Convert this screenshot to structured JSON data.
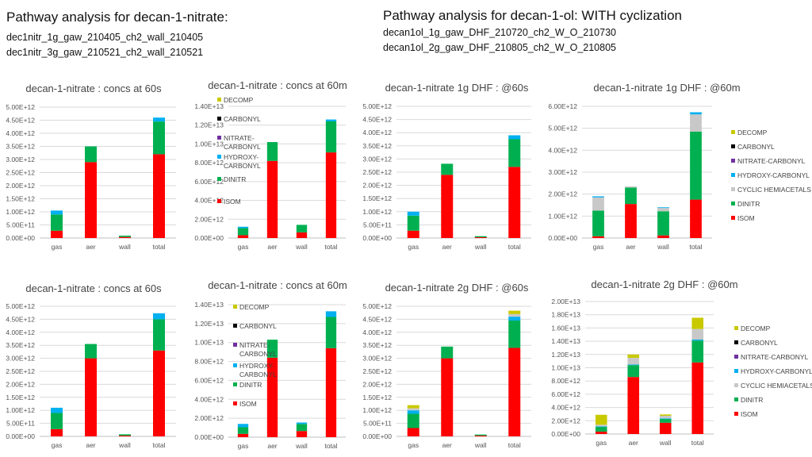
{
  "header": {
    "left_title": "Pathway analysis for decan-1-nitrate:",
    "left_lines": [
      "dec1nitr_1g_gaw_210405_ch2_wall_210405",
      "dec1nitr_3g_gaw_210521_ch2_wall_210521"
    ],
    "right_title": "Pathway analysis for decan-1-ol: WITH cyclization",
    "right_lines": [
      "decan1ol_1g_gaw_DHF_210720_ch2_W_O_210730",
      "decan1ol_2g_gaw_DHF_210805_ch2_W_O_210805"
    ]
  },
  "colors": {
    "ISOM": "#ff0000",
    "DINITR": "#00b050",
    "HYDROXY-CARBONYL": "#00b0f0",
    "NITRATE-CARBONYL": "#7030a0",
    "CARBONYL": "#000000",
    "DECOMP": "#c9c900",
    "CYCLIC HEMIACETALS": "#c8c8c8",
    "grid": "#d9d9d9"
  },
  "chart_data": [
    {
      "type": "bar",
      "stacked": true,
      "title": "decan-1-nitrate : concs at 60s",
      "categories": [
        "gas",
        "aer",
        "wall",
        "total"
      ],
      "yticks": [
        "0.00E+00",
        "5.00E+11",
        "1.00E+12",
        "1.50E+12",
        "2.00E+12",
        "2.50E+12",
        "3.00E+12",
        "3.50E+12",
        "4.00E+12",
        "4.50E+12",
        "5.00E+12"
      ],
      "ylim": [
        0,
        5000000000000.0
      ],
      "legend": null,
      "series": [
        {
          "name": "ISOM",
          "values": [
            280000000000.0,
            2900000000000.0,
            40000000000.0,
            3200000000000.0
          ]
        },
        {
          "name": "DINITR",
          "values": [
            620000000000.0,
            600000000000.0,
            50000000000.0,
            1250000000000.0
          ]
        },
        {
          "name": "HYDROXY-CARBONYL",
          "values": [
            150000000000.0,
            0,
            0,
            150000000000.0
          ]
        }
      ]
    },
    {
      "type": "bar",
      "stacked": true,
      "title": "decan-1-nitrate : concs at 60m",
      "categories": [
        "gas",
        "aer",
        "wall",
        "total"
      ],
      "yticks": [
        "0.00E+00",
        "2.00E+12",
        "4.00E+12",
        "6.00E+12",
        "8.00E+12",
        "1.00E+13",
        "1.20E+13",
        "1.40E+13"
      ],
      "ylim": [
        0,
        14000000000000.0
      ],
      "legend": [
        "DECOMP",
        "CARBONYL",
        "NITRATE-\nCARBONYL",
        "HYDROXY-\nCARBONYL",
        "DINITR",
        "ISOM"
      ],
      "legend_keys": [
        "DECOMP",
        "CARBONYL",
        "NITRATE-CARBONYL",
        "HYDROXY-CARBONYL",
        "DINITR",
        "ISOM"
      ],
      "series": [
        {
          "name": "ISOM",
          "values": [
            300000000000.0,
            8200000000000.0,
            600000000000.0,
            9100000000000.0
          ]
        },
        {
          "name": "DINITR",
          "values": [
            750000000000.0,
            2000000000000.0,
            800000000000.0,
            3300000000000.0
          ]
        },
        {
          "name": "HYDROXY-CARBONYL",
          "values": [
            150000000000.0,
            0,
            0,
            200000000000.0
          ]
        }
      ]
    },
    {
      "type": "bar",
      "stacked": true,
      "title": "decan-1-nitrate 1g DHF : @60s",
      "categories": [
        "gas",
        "aer",
        "wall",
        "total"
      ],
      "yticks": [
        "0.00E+00",
        "5.00E+11",
        "1.00E+12",
        "1.50E+12",
        "2.00E+12",
        "2.50E+12",
        "3.00E+12",
        "3.50E+12",
        "4.00E+12",
        "4.50E+12",
        "5.00E+12"
      ],
      "ylim": [
        0,
        5000000000000.0
      ],
      "legend": null,
      "series": [
        {
          "name": "ISOM",
          "values": [
            280000000000.0,
            2400000000000.0,
            30000000000.0,
            2700000000000.0
          ]
        },
        {
          "name": "DINITR",
          "values": [
            570000000000.0,
            420000000000.0,
            40000000000.0,
            1050000000000.0
          ]
        },
        {
          "name": "HYDROXY-CARBONYL",
          "values": [
            150000000000.0,
            0,
            0,
            150000000000.0
          ]
        }
      ]
    },
    {
      "type": "bar",
      "stacked": true,
      "title": "decan-1-nitrate 1g DHF : @60m",
      "categories": [
        "gas",
        "aer",
        "wall",
        "total"
      ],
      "yticks": [
        "0.00E+00",
        "1.00E+12",
        "2.00E+12",
        "3.00E+12",
        "4.00E+12",
        "5.00E+12",
        "6.00E+12"
      ],
      "ylim": [
        0,
        6000000000000.0
      ],
      "legend": [
        "DECOMP",
        "CARBONYL",
        "NITRATE-CARBONYL",
        "HYDROXY-CARBONYL",
        "CYCLIC HEMIACETALS",
        "DINITR",
        "ISOM"
      ],
      "legend_keys": [
        "DECOMP",
        "CARBONYL",
        "NITRATE-CARBONYL",
        "HYDROXY-CARBONYL",
        "CYCLIC HEMIACETALS",
        "DINITR",
        "ISOM"
      ],
      "series": [
        {
          "name": "ISOM",
          "values": [
            80000000000.0,
            1550000000000.0,
            120000000000.0,
            1750000000000.0
          ]
        },
        {
          "name": "DINITR",
          "values": [
            1170000000000.0,
            750000000000.0,
            1100000000000.0,
            3100000000000.0
          ]
        },
        {
          "name": "CYCLIC HEMIACETALS",
          "values": [
            600000000000.0,
            50000000000.0,
            150000000000.0,
            780000000000.0
          ]
        },
        {
          "name": "HYDROXY-CARBONYL",
          "values": [
            50000000000.0,
            0,
            30000000000.0,
            100000000000.0
          ]
        }
      ]
    },
    {
      "type": "bar",
      "stacked": true,
      "title": "decan-1-nitrate : concs at 60s",
      "categories": [
        "gas",
        "aer",
        "wall",
        "total"
      ],
      "yticks": [
        "0.00E+00",
        "5.00E+11",
        "1.00E+12",
        "1.50E+12",
        "2.00E+12",
        "2.50E+12",
        "3.00E+12",
        "3.50E+12",
        "4.00E+12",
        "4.50E+12",
        "5.00E+12"
      ],
      "ylim": [
        0,
        5000000000000.0
      ],
      "legend": null,
      "series": [
        {
          "name": "ISOM",
          "values": [
            280000000000.0,
            3000000000000.0,
            30000000000.0,
            3300000000000.0
          ]
        },
        {
          "name": "DINITR",
          "values": [
            620000000000.0,
            550000000000.0,
            50000000000.0,
            1200000000000.0
          ]
        },
        {
          "name": "HYDROXY-CARBONYL",
          "values": [
            200000000000.0,
            0,
            0,
            230000000000.0
          ]
        }
      ]
    },
    {
      "type": "bar",
      "stacked": true,
      "title": "decan-1-nitrate : concs at 60m",
      "categories": [
        "gas",
        "aer",
        "wall",
        "total"
      ],
      "yticks": [
        "0.00E+00",
        "2.00E+12",
        "4.00E+12",
        "6.00E+12",
        "8.00E+12",
        "1.00E+13",
        "1.20E+13",
        "1.40E+13"
      ],
      "ylim": [
        0,
        14000000000000.0
      ],
      "legend": [
        "DECOMP",
        "CARBONYL",
        "NITRATE-\nCARBONYL",
        "HYDROXY-\nCARBONYL",
        "DINITR",
        "ISOM"
      ],
      "legend_keys": [
        "DECOMP",
        "CARBONYL",
        "NITRATE-CARBONYL",
        "HYDROXY-CARBONYL",
        "DINITR",
        "ISOM"
      ],
      "series": [
        {
          "name": "ISOM",
          "values": [
            350000000000.0,
            8400000000000.0,
            650000000000.0,
            9400000000000.0
          ]
        },
        {
          "name": "DINITR",
          "values": [
            700000000000.0,
            1900000000000.0,
            750000000000.0,
            3300000000000.0
          ]
        },
        {
          "name": "HYDROXY-CARBONYL",
          "values": [
            350000000000.0,
            0,
            150000000000.0,
            600000000000.0
          ]
        }
      ]
    },
    {
      "type": "bar",
      "stacked": true,
      "title": "decan-1-nitrate 2g DHF : @60s",
      "categories": [
        "gas",
        "aer",
        "wall",
        "total"
      ],
      "yticks": [
        "0.00E+00",
        "5.00E+11",
        "1.00E+12",
        "1.50E+12",
        "2.00E+12",
        "2.50E+12",
        "3.00E+12",
        "3.50E+12",
        "4.00E+12",
        "4.50E+12",
        "5.00E+12"
      ],
      "ylim": [
        0,
        5000000000000.0
      ],
      "legend": null,
      "series": [
        {
          "name": "ISOM",
          "values": [
            320000000000.0,
            3000000000000.0,
            30000000000.0,
            3400000000000.0
          ]
        },
        {
          "name": "DINITR",
          "values": [
            550000000000.0,
            450000000000.0,
            40000000000.0,
            1050000000000.0
          ]
        },
        {
          "name": "HYDROXY-CARBONYL",
          "values": [
            130000000000.0,
            0,
            0,
            150000000000.0
          ]
        },
        {
          "name": "CYCLIC HEMIACETALS",
          "values": [
            80000000000.0,
            0,
            0,
            100000000000.0
          ]
        },
        {
          "name": "DECOMP",
          "values": [
            120000000000.0,
            0,
            0,
            130000000000.0
          ]
        }
      ]
    },
    {
      "type": "bar",
      "stacked": true,
      "title": "decan-1-nitrate 2g DHF : @60m",
      "categories": [
        "gas",
        "aer",
        "wall",
        "total"
      ],
      "yticks": [
        "0.00E+00",
        "2.00E+12",
        "4.00E+12",
        "6.00E+12",
        "8.00E+12",
        "1.00E+13",
        "1.20E+13",
        "1.40E+13",
        "1.60E+13",
        "1.80E+13",
        "2.00E+13"
      ],
      "ylim": [
        0,
        20000000000000.0
      ],
      "legend": [
        "DECOMP",
        "CARBONYL",
        "NITRATE-CARBONYL",
        "HYDROXY-CARBONYL",
        "CYCLIC HEMIACETALS",
        "DINITR",
        "ISOM"
      ],
      "legend_keys": [
        "DECOMP",
        "CARBONYL",
        "NITRATE-CARBONYL",
        "HYDROXY-CARBONYL",
        "CYCLIC HEMIACETALS",
        "DINITR",
        "ISOM"
      ],
      "series": [
        {
          "name": "ISOM",
          "values": [
            350000000000.0,
            8600000000000.0,
            1700000000000.0,
            10800000000000.0
          ]
        },
        {
          "name": "DINITR",
          "values": [
            750000000000.0,
            1800000000000.0,
            600000000000.0,
            3300000000000.0
          ]
        },
        {
          "name": "HYDROXY-CARBONYL",
          "values": [
            50000000000.0,
            100000000000.0,
            50000000000.0,
            150000000000.0
          ]
        },
        {
          "name": "CYCLIC HEMIACETALS",
          "values": [
            250000000000.0,
            1000000000000.0,
            400000000000.0,
            1600000000000.0
          ]
        },
        {
          "name": "DECOMP",
          "values": [
            1500000000000.0,
            500000000000.0,
            200000000000.0,
            1700000000000.0
          ]
        }
      ]
    }
  ]
}
